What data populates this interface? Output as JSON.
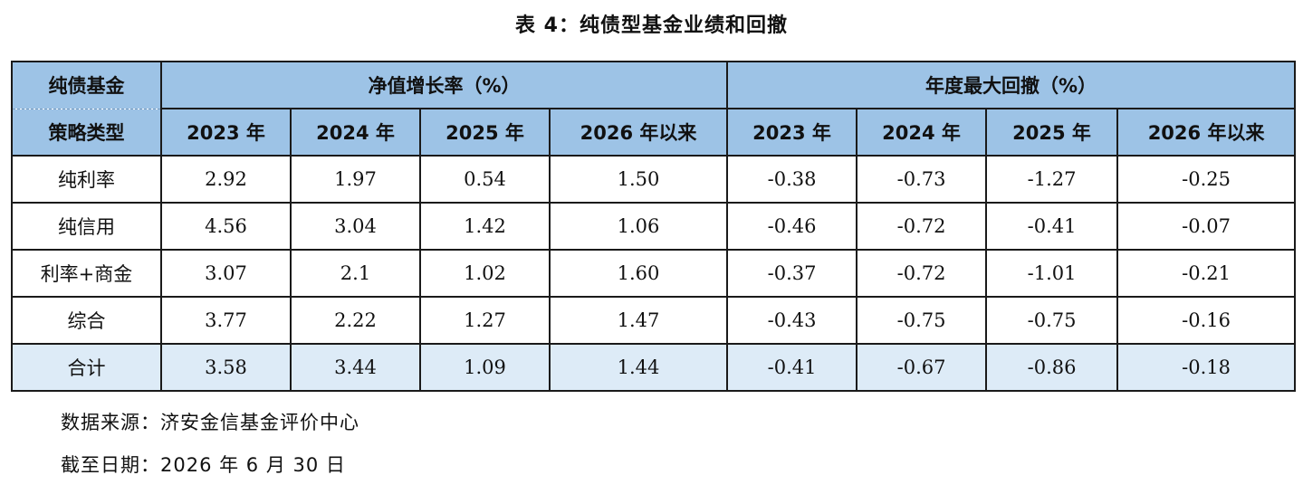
{
  "title": "表 4：纯债型基金业绩和回撤",
  "header": {
    "group_col_top": "纯债基金",
    "group_col_bottom": "策略类型",
    "growth_group": "净值增长率（%）",
    "drawdown_group": "年度最大回撤（%）",
    "growth_years": [
      "2023 年",
      "2024 年",
      "2025 年",
      "2026 年以来"
    ],
    "drawdown_years": [
      "2023 年",
      "2024 年",
      "2025 年",
      "2026 年以来"
    ]
  },
  "rows": [
    {
      "label": "纯利率",
      "growth": [
        "2.92",
        "1.97",
        "0.54",
        "1.50"
      ],
      "drawdown": [
        "-0.38",
        "-0.73",
        "-1.27",
        "-0.25"
      ]
    },
    {
      "label": "纯信用",
      "growth": [
        "4.56",
        "3.04",
        "1.42",
        "1.06"
      ],
      "drawdown": [
        "-0.46",
        "-0.72",
        "-0.41",
        "-0.07"
      ]
    },
    {
      "label": "利率+商金",
      "growth": [
        "3.07",
        "2.1",
        "1.02",
        "1.60"
      ],
      "drawdown": [
        "-0.37",
        "-0.72",
        "-1.01",
        "-0.21"
      ]
    },
    {
      "label": "综合",
      "growth": [
        "3.77",
        "2.22",
        "1.27",
        "1.47"
      ],
      "drawdown": [
        "-0.43",
        "-0.75",
        "-0.75",
        "-0.16"
      ]
    }
  ],
  "total": {
    "label": "合计",
    "growth": [
      "3.58",
      "3.44",
      "1.09",
      "1.44"
    ],
    "drawdown": [
      "-0.41",
      "-0.67",
      "-0.86",
      "-0.18"
    ]
  },
  "footer": {
    "source": "数据来源：济安金信基金评价中心",
    "date": "截至日期：2026 年 6 月 30 日"
  },
  "colors": {
    "header_bg": "#9dc3e6",
    "total_bg": "#ddebf7",
    "border": "#1a1a1a"
  }
}
